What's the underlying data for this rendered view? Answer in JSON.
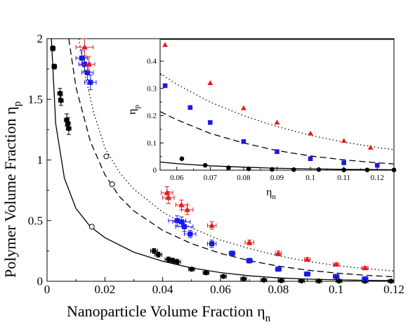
{
  "chart_data": [
    {
      "type": "scatter",
      "xlabel": "Nanoparticle Volume Fraction  η",
      "xlabel_sub": "n",
      "ylabel": "Polymer Volume Fraction  η",
      "ylabel_sub": "p",
      "xlim": [
        0,
        0.12
      ],
      "ylim": [
        0,
        2
      ],
      "xticks": [
        "0",
        "0.02",
        "0.04",
        "0.06",
        "0.08",
        "0.1",
        "0.12"
      ],
      "yticks": [
        "0",
        "0.5",
        "1",
        "1.5",
        "2"
      ],
      "grid": false,
      "series": [
        {
          "marker": "circle",
          "color": "#000000",
          "points": [
            {
              "x": 0.002,
              "y": 1.92,
              "xerr": 0.0008,
              "yerr": 0.02
            },
            {
              "x": 0.0025,
              "y": 1.77,
              "xerr": 0.0008,
              "yerr": 0.02
            },
            {
              "x": 0.0045,
              "y": 1.55,
              "xerr": 0.0008,
              "yerr": 0.04
            },
            {
              "x": 0.0048,
              "y": 1.49,
              "xerr": 0.0008,
              "yerr": 0.04
            },
            {
              "x": 0.0068,
              "y": 1.33,
              "xerr": 0.0008,
              "yerr": 0.05
            },
            {
              "x": 0.0072,
              "y": 1.3,
              "xerr": 0.0008,
              "yerr": 0.05
            },
            {
              "x": 0.0075,
              "y": 1.26,
              "xerr": 0.0008,
              "yerr": 0.05
            },
            {
              "x": 0.037,
              "y": 0.25,
              "xerr": 0.0012,
              "yerr": 0.02
            },
            {
              "x": 0.0385,
              "y": 0.22,
              "xerr": 0.0012,
              "yerr": 0.02
            },
            {
              "x": 0.042,
              "y": 0.18,
              "xerr": 0.0012,
              "yerr": 0.02
            },
            {
              "x": 0.0435,
              "y": 0.17,
              "xerr": 0.0012,
              "yerr": 0.02
            },
            {
              "x": 0.045,
              "y": 0.16,
              "xerr": 0.0012,
              "yerr": 0.02
            },
            {
              "x": 0.05,
              "y": 0.1,
              "xerr": 0.001,
              "yerr": 0.015
            },
            {
              "x": 0.055,
              "y": 0.07,
              "xerr": 0.001,
              "yerr": 0.015
            },
            {
              "x": 0.061,
              "y": 0.04,
              "xerr": 0.001,
              "yerr": 0.01
            },
            {
              "x": 0.068,
              "y": 0.02,
              "xerr": 0.001,
              "yerr": 0.01
            },
            {
              "x": 0.075,
              "y": 0.01,
              "xerr": 0.001,
              "yerr": 0.005
            },
            {
              "x": 0.081,
              "y": 0.005,
              "xerr": 0.001,
              "yerr": 0.005
            },
            {
              "x": 0.088,
              "y": 0.003,
              "xerr": 0.001,
              "yerr": 0.003
            },
            {
              "x": 0.094,
              "y": 0.002,
              "xerr": 0.001,
              "yerr": 0.003
            },
            {
              "x": 0.101,
              "y": 0.002,
              "xerr": 0.001,
              "yerr": 0.003
            },
            {
              "x": 0.11,
              "y": 0.001,
              "xerr": 0.001,
              "yerr": 0.003
            },
            {
              "x": 0.119,
              "y": 0.001,
              "xerr": 0.001,
              "yerr": 0.003
            }
          ]
        },
        {
          "marker": "square",
          "color": "#1a1ae6",
          "points": [
            {
              "x": 0.012,
              "y": 1.84,
              "xerr": 0.002,
              "yerr": 0.06
            },
            {
              "x": 0.013,
              "y": 1.79,
              "xerr": 0.002,
              "yerr": 0.06
            },
            {
              "x": 0.014,
              "y": 1.72,
              "xerr": 0.002,
              "yerr": 0.06
            },
            {
              "x": 0.015,
              "y": 1.64,
              "xerr": 0.002,
              "yerr": 0.06
            },
            {
              "x": 0.045,
              "y": 0.5,
              "xerr": 0.003,
              "yerr": 0.04
            },
            {
              "x": 0.0465,
              "y": 0.49,
              "xerr": 0.003,
              "yerr": 0.04
            },
            {
              "x": 0.0475,
              "y": 0.45,
              "xerr": 0.003,
              "yerr": 0.04
            },
            {
              "x": 0.0495,
              "y": 0.39,
              "xerr": 0.002,
              "yerr": 0.03
            },
            {
              "x": 0.057,
              "y": 0.31,
              "xerr": 0.0015,
              "yerr": 0.03
            },
            {
              "x": 0.064,
              "y": 0.23,
              "xerr": 0.001,
              "yerr": 0.02
            },
            {
              "x": 0.07,
              "y": 0.17,
              "xerr": 0.001,
              "yerr": 0.02
            },
            {
              "x": 0.08,
              "y": 0.1,
              "xerr": 0.001,
              "yerr": 0.015
            },
            {
              "x": 0.09,
              "y": 0.06,
              "xerr": 0.001,
              "yerr": 0.01
            },
            {
              "x": 0.1,
              "y": 0.04,
              "xerr": 0.001,
              "yerr": 0.01
            },
            {
              "x": 0.11,
              "y": 0.02,
              "xerr": 0.001,
              "yerr": 0.008
            }
          ]
        },
        {
          "marker": "triangle",
          "color": "#e61a1a",
          "points": [
            {
              "x": 0.013,
              "y": 1.93,
              "xerr": 0.003,
              "yerr": 0.07
            },
            {
              "x": 0.0145,
              "y": 1.79,
              "xerr": 0.002,
              "yerr": 0.06
            },
            {
              "x": 0.0415,
              "y": 0.73,
              "xerr": 0.002,
              "yerr": 0.05
            },
            {
              "x": 0.042,
              "y": 0.69,
              "xerr": 0.002,
              "yerr": 0.05
            },
            {
              "x": 0.0465,
              "y": 0.63,
              "xerr": 0.002,
              "yerr": 0.04
            },
            {
              "x": 0.0485,
              "y": 0.59,
              "xerr": 0.002,
              "yerr": 0.04
            },
            {
              "x": 0.057,
              "y": 0.46,
              "xerr": 0.0015,
              "yerr": 0.03
            },
            {
              "x": 0.07,
              "y": 0.32,
              "xerr": 0.0015,
              "yerr": 0.02
            },
            {
              "x": 0.08,
              "y": 0.23,
              "xerr": 0.001,
              "yerr": 0.02
            },
            {
              "x": 0.09,
              "y": 0.18,
              "xerr": 0.001,
              "yerr": 0.015
            },
            {
              "x": 0.1,
              "y": 0.14,
              "xerr": 0.001,
              "yerr": 0.01
            },
            {
              "x": 0.11,
              "y": 0.11,
              "xerr": 0.001,
              "yerr": 0.01
            }
          ]
        },
        {
          "marker": "open-circle",
          "color": "#000000",
          "points": [
            {
              "x": 0.0155,
              "y": 0.45
            },
            {
              "x": 0.0205,
              "y": 1.03
            },
            {
              "x": 0.0225,
              "y": 0.8
            }
          ]
        }
      ],
      "curves": [
        {
          "style": "solid",
          "color": "#000000",
          "x": [
            0.0015,
            0.003,
            0.006,
            0.01,
            0.015,
            0.02,
            0.03,
            0.04,
            0.05,
            0.06,
            0.07,
            0.08,
            0.09,
            0.1,
            0.11,
            0.12
          ],
          "y": [
            2.0,
            1.3,
            0.85,
            0.6,
            0.45,
            0.36,
            0.24,
            0.165,
            0.11,
            0.072,
            0.045,
            0.028,
            0.018,
            0.012,
            0.008,
            0.005
          ]
        },
        {
          "style": "dashed",
          "color": "#000000",
          "x": [
            0.0075,
            0.01,
            0.015,
            0.02,
            0.025,
            0.03,
            0.04,
            0.05,
            0.06,
            0.07,
            0.08,
            0.09,
            0.1,
            0.11,
            0.12
          ],
          "y": [
            2.0,
            1.6,
            1.15,
            0.88,
            0.7,
            0.58,
            0.42,
            0.31,
            0.23,
            0.17,
            0.125,
            0.092,
            0.068,
            0.05,
            0.037
          ]
        },
        {
          "style": "dotted",
          "color": "#000000",
          "x": [
            0.011,
            0.013,
            0.016,
            0.02,
            0.025,
            0.03,
            0.04,
            0.05,
            0.06,
            0.07,
            0.08,
            0.09,
            0.1,
            0.11,
            0.12
          ],
          "y": [
            2.0,
            1.72,
            1.4,
            1.1,
            0.9,
            0.76,
            0.57,
            0.44,
            0.34,
            0.27,
            0.21,
            0.165,
            0.13,
            0.105,
            0.085
          ]
        }
      ]
    },
    {
      "type": "scatter",
      "xlabel": "η",
      "xlabel_sub": "n",
      "ylabel": "η",
      "ylabel_sub": "p",
      "xlim": [
        0.055,
        0.125
      ],
      "ylim": [
        0,
        0.48
      ],
      "xticks": [
        "0.06",
        "0.07",
        "0.08",
        "0.09",
        "0.1",
        "0.11",
        "0.12"
      ],
      "yticks": [
        "0",
        "0.1",
        "0.2",
        "0.3",
        "0.4"
      ],
      "grid": false,
      "series": [
        {
          "marker": "circle",
          "color": "#000000",
          "points": [
            {
              "x": 0.0615,
              "y": 0.042
            },
            {
              "x": 0.0685,
              "y": 0.018
            },
            {
              "x": 0.0755,
              "y": 0.009
            },
            {
              "x": 0.0815,
              "y": 0.005
            },
            {
              "x": 0.0885,
              "y": 0.003
            },
            {
              "x": 0.095,
              "y": 0.002
            },
            {
              "x": 0.1025,
              "y": 0.002
            },
            {
              "x": 0.11,
              "y": 0.001
            },
            {
              "x": 0.117,
              "y": 0.001
            },
            {
              "x": 0.125,
              "y": 0.001
            }
          ]
        },
        {
          "marker": "square",
          "color": "#1a1ae6",
          "points": [
            {
              "x": 0.0565,
              "y": 0.31
            },
            {
              "x": 0.064,
              "y": 0.23
            },
            {
              "x": 0.07,
              "y": 0.175
            },
            {
              "x": 0.08,
              "y": 0.105
            },
            {
              "x": 0.09,
              "y": 0.068
            },
            {
              "x": 0.1,
              "y": 0.042
            },
            {
              "x": 0.11,
              "y": 0.027
            },
            {
              "x": 0.12,
              "y": 0.018
            }
          ]
        },
        {
          "marker": "triangle",
          "color": "#e61a1a",
          "points": [
            {
              "x": 0.0565,
              "y": 0.46
            },
            {
              "x": 0.07,
              "y": 0.32
            },
            {
              "x": 0.08,
              "y": 0.228
            },
            {
              "x": 0.09,
              "y": 0.175
            },
            {
              "x": 0.1,
              "y": 0.135
            },
            {
              "x": 0.11,
              "y": 0.108
            },
            {
              "x": 0.118,
              "y": 0.083
            }
          ]
        }
      ],
      "curves": [
        {
          "style": "solid",
          "color": "#000000",
          "x": [
            0.055,
            0.06,
            0.07,
            0.08,
            0.09,
            0.1,
            0.11,
            0.12,
            0.125
          ],
          "y": [
            0.03,
            0.024,
            0.016,
            0.011,
            0.007,
            0.005,
            0.003,
            0.002,
            0.0015
          ]
        },
        {
          "style": "dashed",
          "color": "#000000",
          "x": [
            0.055,
            0.06,
            0.07,
            0.08,
            0.09,
            0.1,
            0.11,
            0.12,
            0.125
          ],
          "y": [
            0.215,
            0.185,
            0.135,
            0.1,
            0.072,
            0.052,
            0.038,
            0.027,
            0.023
          ]
        },
        {
          "style": "dotted",
          "color": "#000000",
          "x": [
            0.055,
            0.06,
            0.07,
            0.08,
            0.09,
            0.1,
            0.11,
            0.12,
            0.125
          ],
          "y": [
            0.355,
            0.315,
            0.25,
            0.2,
            0.16,
            0.128,
            0.103,
            0.083,
            0.075
          ]
        }
      ]
    }
  ]
}
